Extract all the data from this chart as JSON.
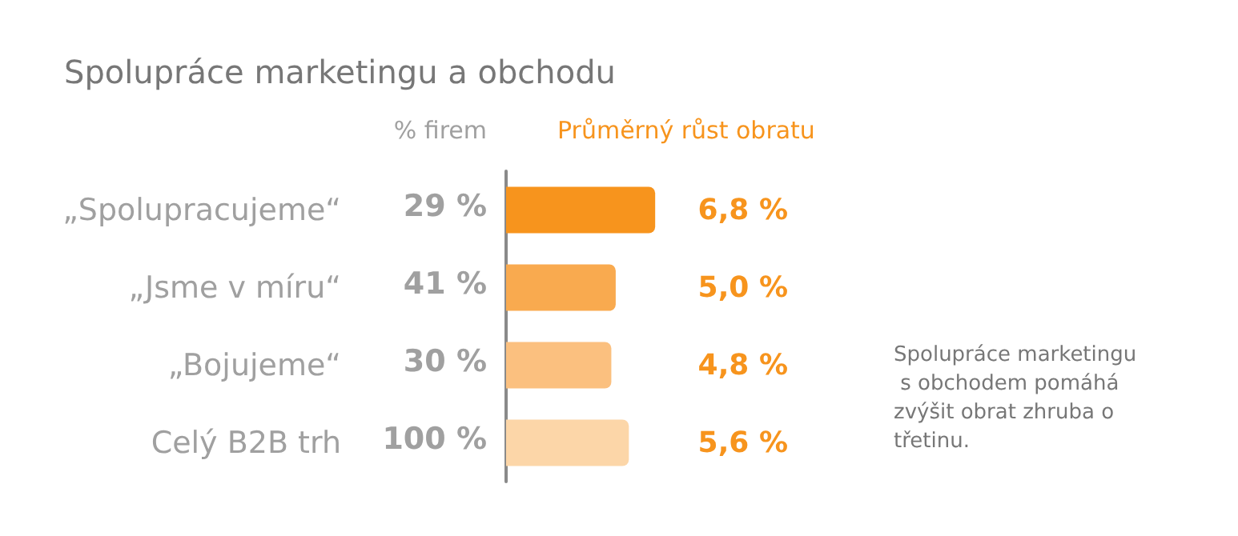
{
  "chart_data": {
    "type": "bar",
    "orientation": "horizontal",
    "title": "Spolupráce marketingu a obchodu",
    "categories": [
      "„Spolupracujeme“",
      "„Jsme v míru“",
      "„Bojujeme“",
      "Celý B2B trh"
    ],
    "series": [
      {
        "name": "Průměrný růst obratu",
        "values": [
          6.8,
          5.0,
          4.8,
          5.6
        ],
        "colors": [
          "#f7941d",
          "#f9aa4f",
          "#fbc07f",
          "#fcd6a8"
        ],
        "value_labels": [
          "6,8 %",
          "5,0 %",
          "4,8 %",
          "5,6 %"
        ]
      }
    ],
    "legend": "top",
    "annotations": [
      "% firem",
      "29 %",
      "41 %",
      "30 %",
      "100 %",
      "Spolupráce marketingu s obchodem pomáhá zvýšit obrat zhruba o třetinu."
    ]
  }
}
